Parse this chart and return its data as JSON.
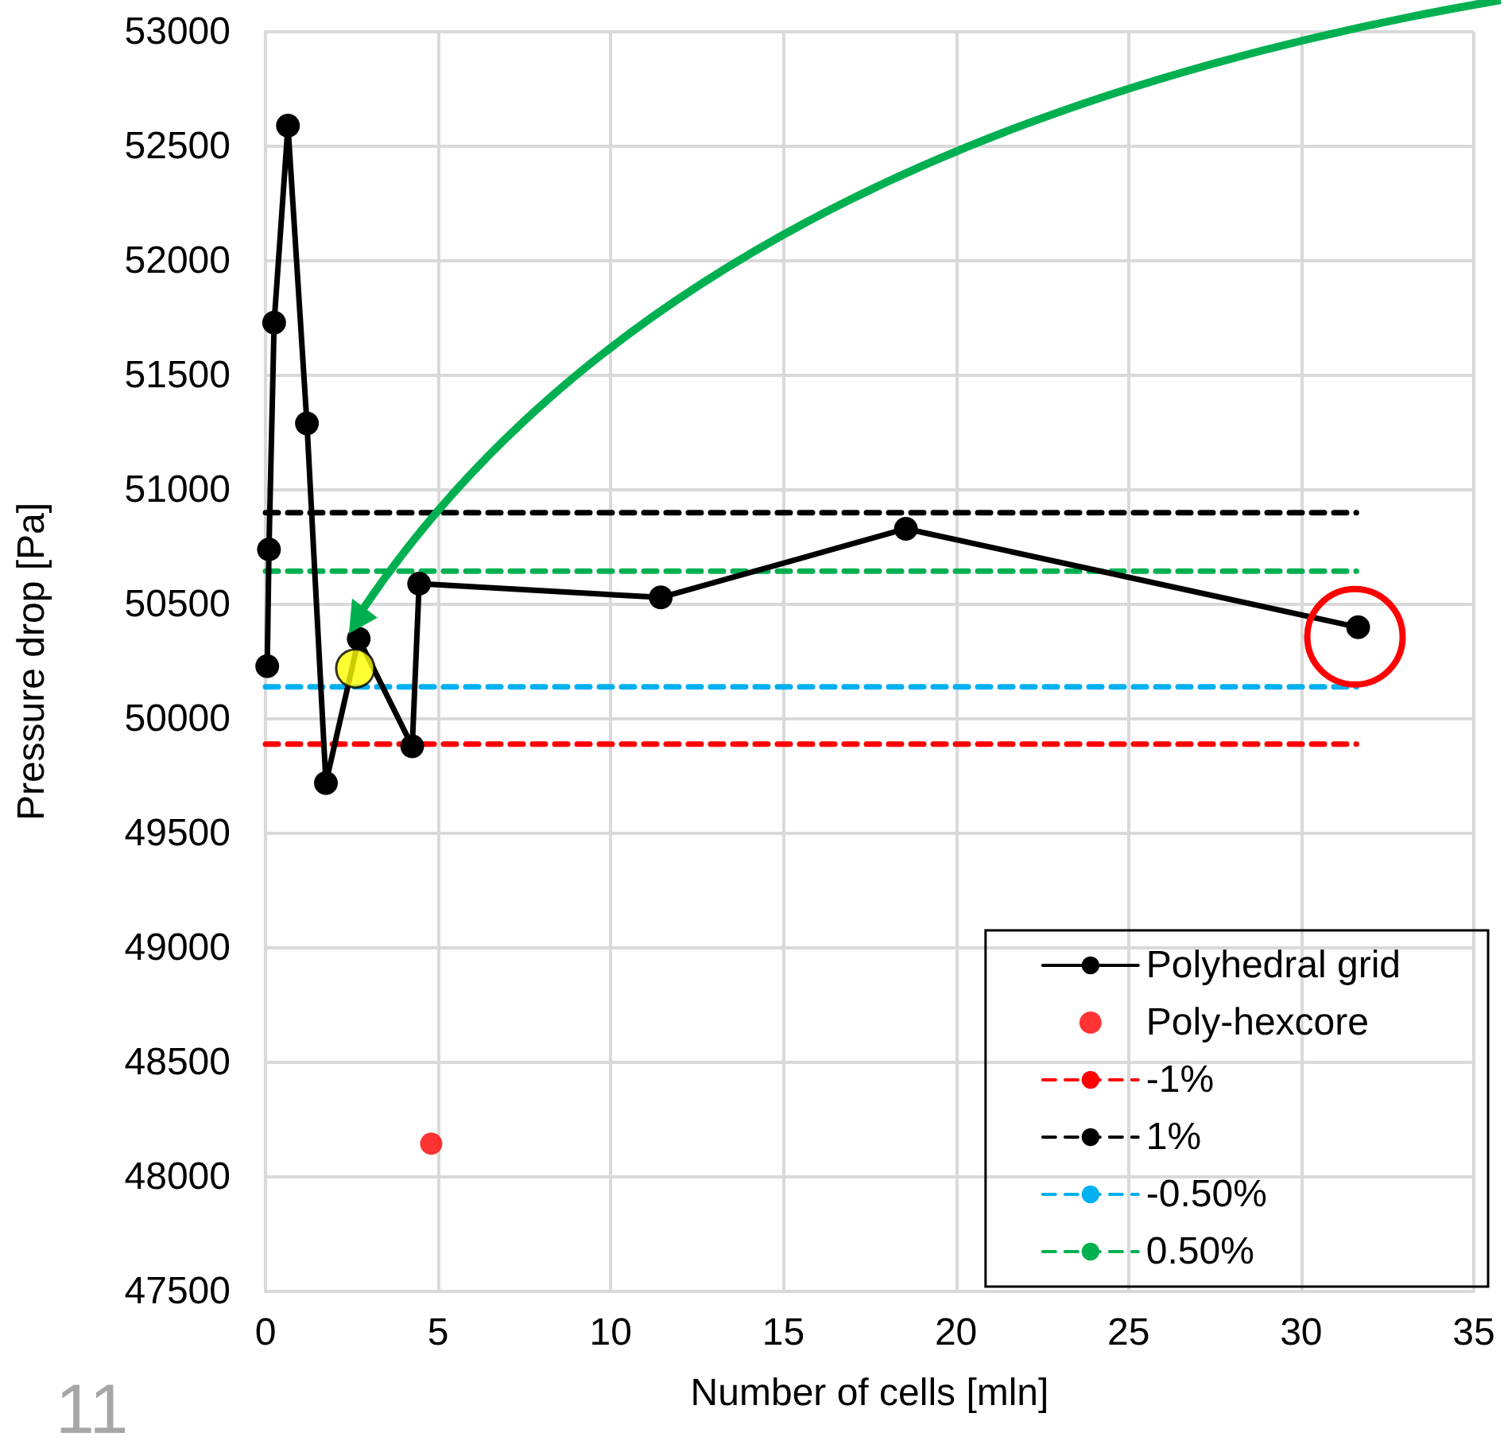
{
  "chart_data": {
    "type": "line",
    "xlabel": "Number of cells [mln]",
    "ylabel": "Pressure drop [Pa]",
    "xlim": [
      0,
      35
    ],
    "xticks": [
      0,
      5,
      10,
      15,
      20,
      25,
      30,
      35
    ],
    "ylim": [
      47500,
      53000
    ],
    "yticks": [
      47500,
      48000,
      48500,
      49000,
      49500,
      50000,
      50500,
      51000,
      51500,
      52000,
      52500,
      53000
    ],
    "grid": true,
    "legend": "bottom right",
    "annotations": [
      "11"
    ],
    "series": [
      {
        "name": "Polyhedral grid",
        "color": "#000000",
        "marker": "circle",
        "line_style": "solid",
        "x": [
          0.05,
          0.1,
          0.25,
          0.65,
          1.2,
          1.75,
          2.7,
          4.25,
          4.45,
          11.45,
          18.55,
          31.65
        ],
        "values": [
          50230,
          50740,
          51730,
          52590,
          51290,
          49720,
          50350,
          49880,
          50590,
          50530,
          50830,
          50400
        ]
      },
      {
        "name": "Poly-hexcore",
        "type": "scatter",
        "color": "#ff0000",
        "marker": "circle",
        "x": [
          4.8
        ],
        "values": [
          48145
        ]
      },
      {
        "name": "-1%",
        "type": "line",
        "color": "#ff0000",
        "marker": "none",
        "line_style": "dashed",
        "x": [
          0,
          31.6
        ],
        "values": [
          49890,
          49890
        ]
      },
      {
        "name": "1%",
        "type": "line",
        "color": "#000000",
        "marker": "none",
        "line_style": "dashed",
        "x": [
          0,
          31.6
        ],
        "values": [
          50900,
          50900
        ]
      },
      {
        "name": "-0.50%",
        "type": "line",
        "color": "#00b0f0",
        "marker": "none",
        "line_style": "dashed",
        "x": [
          0,
          31.6
        ],
        "values": [
          50140,
          50140
        ]
      },
      {
        "name": "0.50%",
        "type": "line",
        "color": "#00b050",
        "marker": "none",
        "line_style": "dashed",
        "x": [
          0,
          31.6
        ],
        "values": [
          50645,
          50645
        ]
      },
      {
        "type": "scatter",
        "color": "#ffff00",
        "marker": "circle",
        "x": [
          2.6
        ],
        "values": [
          50220
        ]
      }
    ]
  }
}
